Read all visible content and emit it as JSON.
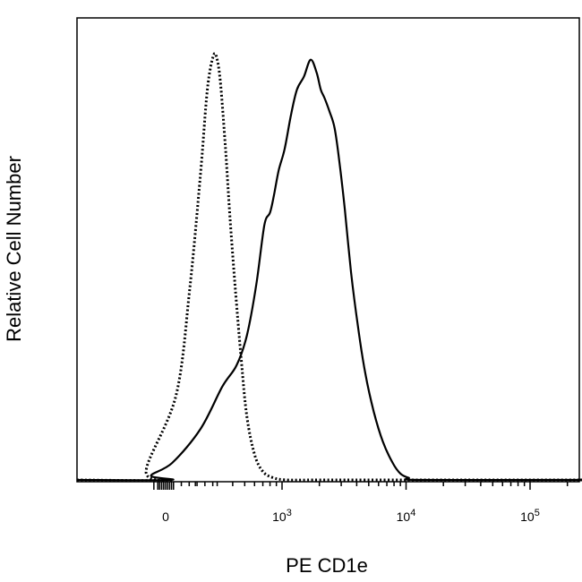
{
  "chart_data": {
    "type": "line",
    "xlabel": "PE CD1e",
    "ylabel": "Relative Cell Number",
    "x_scale": "biexponential",
    "x_tick_labels": [
      {
        "value": 0,
        "base": "0",
        "exp": ""
      },
      {
        "value": 1000,
        "base": "10",
        "exp": "3"
      },
      {
        "value": 10000,
        "base": "10",
        "exp": "4"
      },
      {
        "value": 100000,
        "base": "10",
        "exp": "5"
      }
    ],
    "y_ticks_shown": false,
    "grid": false,
    "legend": "none",
    "series": [
      {
        "style": "dotted",
        "color": "#000000",
        "x": [
          -20,
          80,
          140,
          180,
          220,
          250,
          280,
          300,
          320,
          350,
          380,
          420,
          470,
          520,
          600,
          700,
          850,
          1100,
          2000,
          10000,
          200000
        ],
        "y": [
          0,
          0.02,
          0.2,
          0.45,
          0.72,
          0.92,
          1.0,
          0.99,
          0.93,
          0.78,
          0.62,
          0.45,
          0.28,
          0.15,
          0.06,
          0.02,
          0.005,
          0,
          0,
          0,
          0
        ]
      },
      {
        "style": "solid",
        "color": "#000000",
        "x": [
          -20,
          60,
          130,
          220,
          330,
          430,
          520,
          620,
          720,
          800,
          860,
          940,
          1050,
          1180,
          1320,
          1500,
          1700,
          1900,
          2050,
          2200,
          2400,
          2650,
          2900,
          3200,
          3600,
          4100,
          4700,
          5500,
          6500,
          7800,
          9000,
          10500,
          13000,
          200000
        ],
        "y": [
          0,
          0.01,
          0.04,
          0.12,
          0.22,
          0.27,
          0.34,
          0.46,
          0.6,
          0.63,
          0.67,
          0.73,
          0.78,
          0.86,
          0.92,
          0.95,
          0.99,
          0.96,
          0.92,
          0.9,
          0.87,
          0.83,
          0.75,
          0.64,
          0.49,
          0.36,
          0.25,
          0.16,
          0.09,
          0.04,
          0.015,
          0.005,
          0,
          0
        ]
      }
    ]
  }
}
